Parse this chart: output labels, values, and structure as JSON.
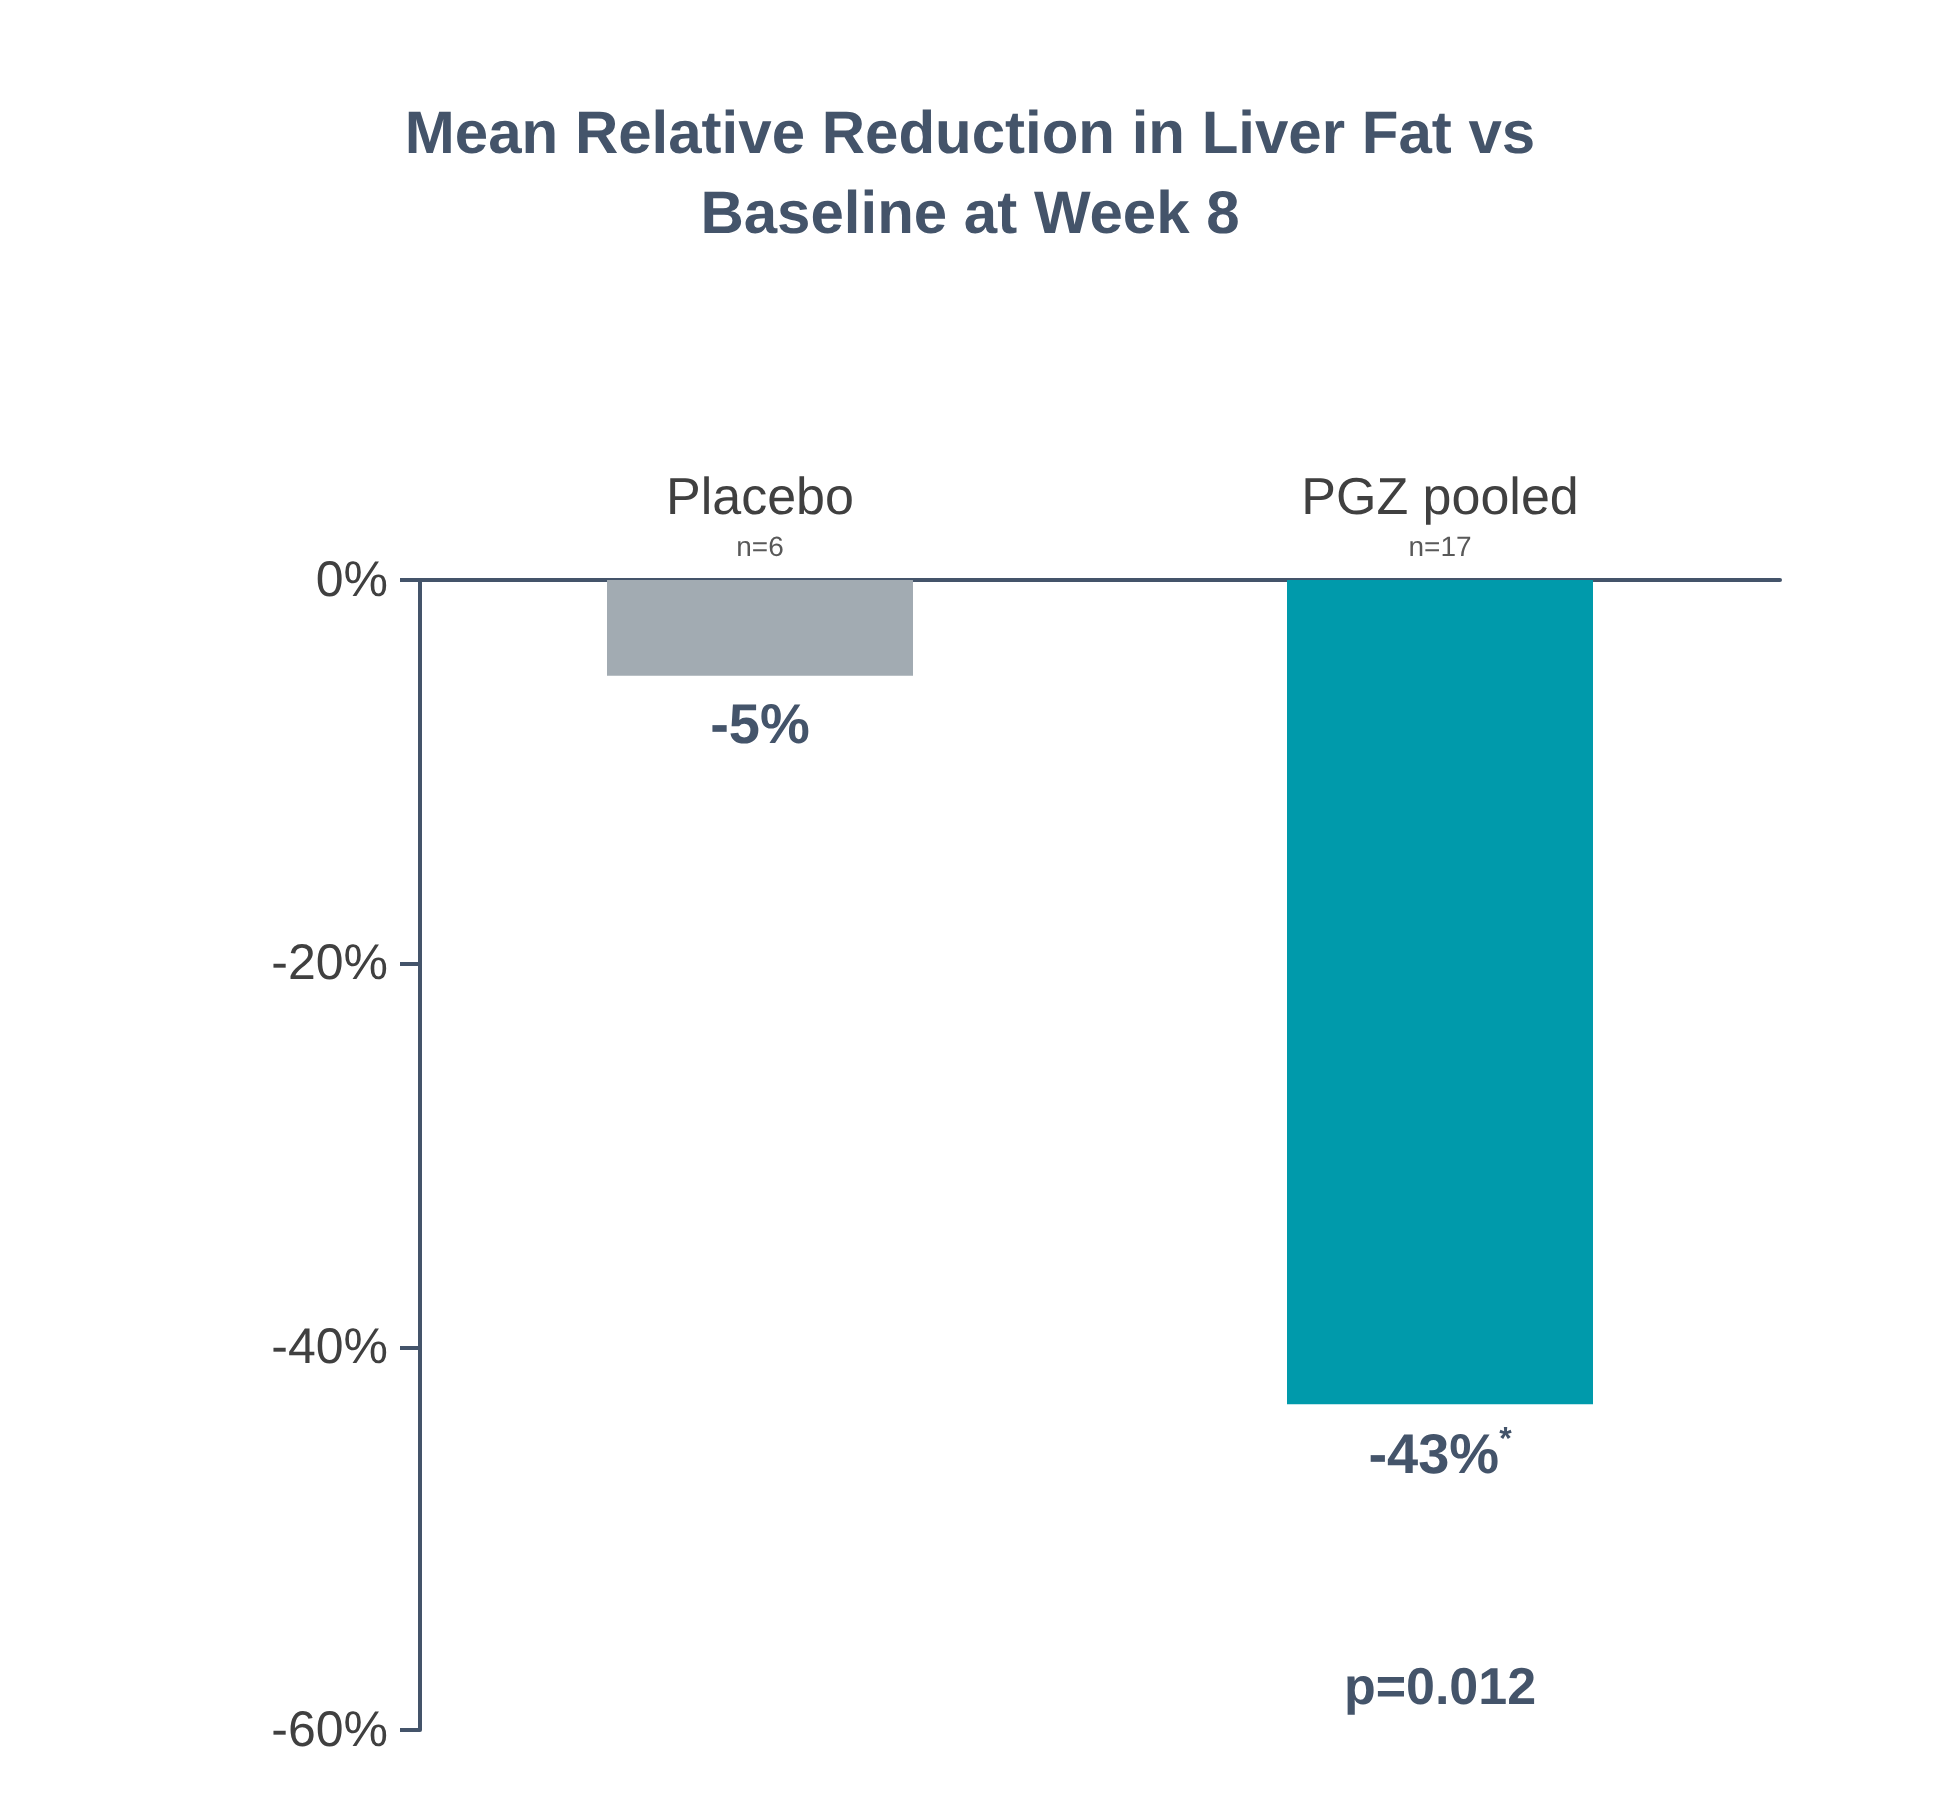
{
  "chart_data": {
    "type": "bar",
    "title": "Mean Relative Reduction in Liver Fat vs\nBaseline at Week 8",
    "categories": [
      "Placebo",
      "PGZ pooled"
    ],
    "values": [
      -5,
      -43
    ],
    "colors": [
      "#a2abb2",
      "#009aab"
    ],
    "value_labels": [
      "-5%",
      "-43%$^{*}$"
    ],
    "ylim": [
      -60,
      0
    ],
    "yticks": [
      {
        "value": 0,
        "label": "0%"
      },
      {
        "value": -20,
        "label": "-20%"
      },
      {
        "value": -40,
        "label": "-40%"
      },
      {
        "value": -60,
        "label": "-60%"
      }
    ],
    "grid": false,
    "annotations": [
      "n=6",
      "n=17",
      "p=0.012"
    ]
  }
}
